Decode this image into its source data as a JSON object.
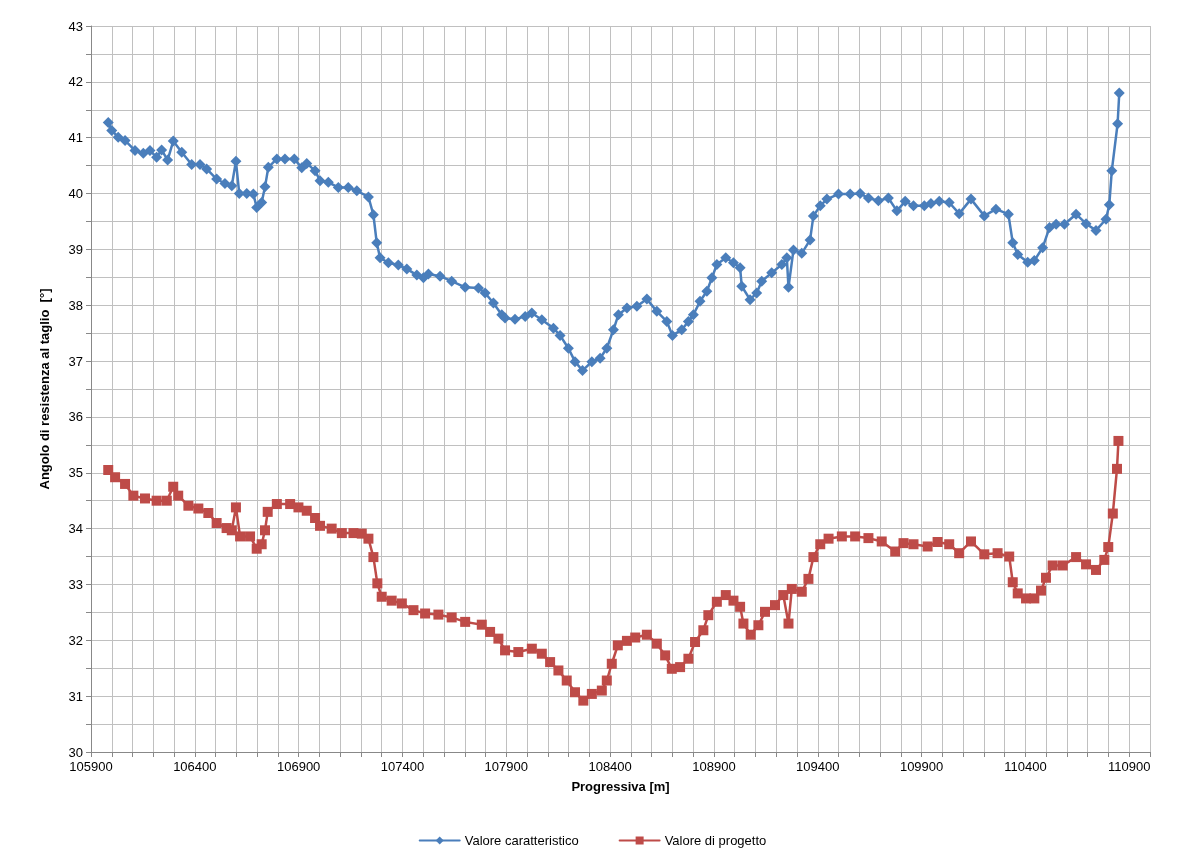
{
  "chart_data": {
    "type": "line",
    "xlabel": "Progressiva [m]",
    "ylabel": "Angolo di resistenza al taglio  [°]",
    "xlim": [
      105900,
      111000
    ],
    "xticks": [
      105900,
      {
        "value": 106000,
        "label": null
      },
      {
        "value": 106100,
        "label": null
      },
      {
        "value": 106200,
        "label": null
      },
      {
        "value": 106300,
        "label": null
      },
      106400,
      {
        "value": 106500,
        "label": null
      },
      {
        "value": 106600,
        "label": null
      },
      {
        "value": 106700,
        "label": null
      },
      {
        "value": 106800,
        "label": null
      },
      106900,
      {
        "value": 107000,
        "label": null
      },
      {
        "value": 107100,
        "label": null
      },
      {
        "value": 107200,
        "label": null
      },
      {
        "value": 107300,
        "label": null
      },
      107400,
      {
        "value": 107500,
        "label": null
      },
      {
        "value": 107600,
        "label": null
      },
      {
        "value": 107700,
        "label": null
      },
      {
        "value": 107800,
        "label": null
      },
      107900,
      {
        "value": 108000,
        "label": null
      },
      {
        "value": 108100,
        "label": null
      },
      {
        "value": 108200,
        "label": null
      },
      {
        "value": 108300,
        "label": null
      },
      108400,
      {
        "value": 108500,
        "label": null
      },
      {
        "value": 108600,
        "label": null
      },
      {
        "value": 108700,
        "label": null
      },
      {
        "value": 108800,
        "label": null
      },
      108900,
      {
        "value": 109000,
        "label": null
      },
      {
        "value": 109100,
        "label": null
      },
      {
        "value": 109200,
        "label": null
      },
      {
        "value": 109300,
        "label": null
      },
      109400,
      {
        "value": 109500,
        "label": null
      },
      {
        "value": 109600,
        "label": null
      },
      {
        "value": 109700,
        "label": null
      },
      {
        "value": 109800,
        "label": null
      },
      109900,
      {
        "value": 110000,
        "label": null
      },
      {
        "value": 110100,
        "label": null
      },
      {
        "value": 110200,
        "label": null
      },
      {
        "value": 110300,
        "label": null
      },
      110400,
      {
        "value": 110500,
        "label": null
      },
      {
        "value": 110600,
        "label": null
      },
      {
        "value": 110700,
        "label": null
      },
      {
        "value": 110800,
        "label": null
      },
      110900,
      {
        "value": 111000,
        "label": null
      }
    ],
    "ylim": [
      30,
      43
    ],
    "yticks": [
      30,
      {
        "value": 30.5,
        "label": null
      },
      31,
      {
        "value": 31.5,
        "label": null
      },
      32,
      {
        "value": 32.5,
        "label": null
      },
      33,
      {
        "value": 33.5,
        "label": null
      },
      34,
      {
        "value": 34.5,
        "label": null
      },
      35,
      {
        "value": 35.5,
        "label": null
      },
      36,
      {
        "value": 36.5,
        "label": null
      },
      37,
      {
        "value": 37.5,
        "label": null
      },
      38,
      {
        "value": 38.5,
        "label": null
      },
      39,
      {
        "value": 39.5,
        "label": null
      },
      40,
      {
        "value": 40.5,
        "label": null
      },
      41,
      {
        "value": 41.5,
        "label": null
      },
      42,
      {
        "value": 42.5,
        "label": null
      },
      43
    ],
    "grid": true,
    "legend": "bottom",
    "line_style": "solid",
    "series": [
      {
        "name": "Valore caratteristico",
        "color": "#4a7ebb",
        "marker": "diamond",
        "x": [
          105983,
          106000,
          106031,
          106064,
          106112,
          106152,
          106184,
          106216,
          106240,
          106269,
          106296,
          106337,
          106385,
          106425,
          106457,
          106505,
          106545,
          106578,
          106598,
          106614,
          106650,
          106682,
          106698,
          106722,
          106738,
          106754,
          106795,
          106834,
          106879,
          106915,
          106939,
          106979,
          107003,
          107043,
          107091,
          107139,
          107180,
          107236,
          107260,
          107276,
          107292,
          107332,
          107380,
          107421,
          107469,
          107501,
          107525,
          107581,
          107637,
          107702,
          107766,
          107798,
          107838,
          107878,
          107894,
          107942,
          107991,
          108023,
          108071,
          108127,
          108159,
          108199,
          108231,
          108267,
          108312,
          108352,
          108384,
          108416,
          108440,
          108481,
          108529,
          108577,
          108625,
          108673,
          108700,
          108745,
          108777,
          108801,
          108833,
          108866,
          108890,
          108914,
          108957,
          108994,
          109026,
          109034,
          109074,
          109106,
          109130,
          109178,
          109227,
          109251,
          109259,
          109283,
          109323,
          109363,
          109379,
          109412,
          109444,
          109500,
          109556,
          109604,
          109644,
          109692,
          109740,
          109781,
          109821,
          109861,
          109913,
          109945,
          109985,
          110033,
          110081,
          110138,
          110202,
          110258,
          110318,
          110339,
          110363,
          110411,
          110443,
          110483,
          110516,
          110548,
          110588,
          110644,
          110692,
          110740,
          110788,
          110804,
          110816,
          110844,
          110852
        ],
        "values": [
          41.27,
          41.13,
          41.01,
          40.95,
          40.77,
          40.72,
          40.77,
          40.65,
          40.78,
          40.6,
          40.94,
          40.74,
          40.52,
          40.52,
          40.44,
          40.26,
          40.18,
          40.14,
          40.58,
          40.0,
          40.0,
          39.99,
          39.75,
          39.84,
          40.12,
          40.47,
          40.62,
          40.62,
          40.62,
          40.46,
          40.54,
          40.41,
          40.23,
          40.2,
          40.11,
          40.11,
          40.05,
          39.94,
          39.62,
          39.12,
          38.85,
          38.76,
          38.72,
          38.65,
          38.54,
          38.49,
          38.56,
          38.52,
          38.43,
          38.32,
          38.31,
          38.22,
          38.04,
          37.83,
          37.77,
          37.75,
          37.8,
          37.86,
          37.74,
          37.59,
          37.46,
          37.23,
          36.99,
          36.83,
          36.99,
          37.05,
          37.23,
          37.56,
          37.83,
          37.95,
          37.98,
          38.11,
          37.89,
          37.71,
          37.46,
          37.56,
          37.71,
          37.83,
          38.07,
          38.25,
          38.49,
          38.73,
          38.85,
          38.76,
          38.67,
          38.34,
          38.1,
          38.22,
          38.43,
          38.58,
          38.73,
          38.85,
          38.32,
          38.99,
          38.93,
          39.17,
          39.6,
          39.78,
          39.9,
          39.99,
          39.99,
          40.0,
          39.92,
          39.87,
          39.92,
          39.69,
          39.86,
          39.78,
          39.78,
          39.82,
          39.86,
          39.84,
          39.64,
          39.9,
          39.6,
          39.72,
          39.63,
          39.12,
          38.91,
          38.77,
          38.8,
          39.03,
          39.39,
          39.45,
          39.45,
          39.63,
          39.46,
          39.34,
          39.54,
          39.8,
          40.41,
          41.25,
          41.8
        ]
      },
      {
        "name": "Valore di progetto",
        "color": "#be4b48",
        "marker": "square",
        "x": [
          105983,
          106016,
          106064,
          106104,
          106160,
          106216,
          106265,
          106296,
          106320,
          106369,
          106417,
          106465,
          106505,
          106553,
          106578,
          106598,
          106618,
          106666,
          106698,
          106722,
          106738,
          106751,
          106795,
          106859,
          106899,
          106939,
          106979,
          107003,
          107059,
          107108,
          107164,
          107204,
          107236,
          107260,
          107279,
          107300,
          107348,
          107397,
          107453,
          107509,
          107573,
          107637,
          107702,
          107782,
          107822,
          107862,
          107894,
          107958,
          108023,
          108071,
          108111,
          108151,
          108191,
          108231,
          108271,
          108312,
          108360,
          108384,
          108408,
          108437,
          108481,
          108521,
          108577,
          108625,
          108665,
          108697,
          108737,
          108777,
          108809,
          108849,
          108873,
          108914,
          108957,
          108994,
          109026,
          109042,
          109077,
          109114,
          109146,
          109194,
          109234,
          109259,
          109275,
          109323,
          109355,
          109379,
          109412,
          109452,
          109516,
          109580,
          109644,
          109708,
          109773,
          109813,
          109861,
          109929,
          109977,
          110033,
          110081,
          110138,
          110202,
          110266,
          110322,
          110339,
          110363,
          110403,
          110443,
          110475,
          110499,
          110531,
          110580,
          110644,
          110692,
          110740,
          110780,
          110799,
          110821,
          110841,
          110848
        ],
        "values": [
          35.05,
          34.92,
          34.8,
          34.59,
          34.54,
          34.5,
          34.5,
          34.75,
          34.59,
          34.41,
          34.36,
          34.28,
          34.1,
          34.01,
          33.97,
          34.38,
          33.86,
          33.86,
          33.64,
          33.72,
          33.97,
          34.3,
          34.44,
          34.44,
          34.38,
          34.32,
          34.19,
          34.05,
          34.0,
          33.92,
          33.92,
          33.91,
          33.82,
          33.49,
          33.02,
          32.78,
          32.71,
          32.66,
          32.54,
          32.48,
          32.46,
          32.41,
          32.33,
          32.28,
          32.15,
          32.03,
          31.82,
          31.79,
          31.85,
          31.76,
          31.61,
          31.46,
          31.28,
          31.07,
          30.92,
          31.04,
          31.1,
          31.28,
          31.58,
          31.91,
          31.99,
          32.05,
          32.1,
          31.94,
          31.73,
          31.49,
          31.52,
          31.67,
          31.97,
          32.18,
          32.45,
          32.69,
          32.81,
          32.71,
          32.6,
          32.3,
          32.1,
          32.27,
          32.51,
          32.63,
          32.81,
          32.3,
          32.92,
          32.87,
          33.1,
          33.49,
          33.72,
          33.82,
          33.86,
          33.86,
          33.83,
          33.77,
          33.59,
          33.74,
          33.72,
          33.68,
          33.76,
          33.72,
          33.56,
          33.77,
          33.54,
          33.56,
          33.5,
          33.04,
          32.84,
          32.75,
          32.75,
          32.89,
          33.12,
          33.34,
          33.34,
          33.49,
          33.36,
          33.26,
          33.44,
          33.67,
          34.27,
          35.07,
          35.57
        ]
      }
    ]
  }
}
